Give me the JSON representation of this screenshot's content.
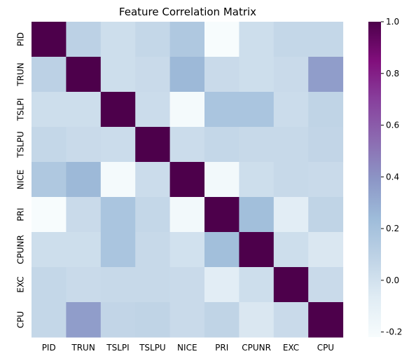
{
  "chart_data": {
    "type": "heatmap",
    "title": "Feature Correlation Matrix",
    "xlabel": "",
    "ylabel": "",
    "labels": [
      "PID",
      "TRUN",
      "TSLPI",
      "TSLPU",
      "NICE",
      "PRI",
      "CPUNR",
      "EXC",
      "CPU"
    ],
    "matrix": [
      [
        1.0,
        0.1,
        0.02,
        0.06,
        0.16,
        -0.22,
        0.02,
        0.06,
        0.06
      ],
      [
        0.1,
        1.0,
        0.02,
        0.04,
        0.25,
        0.04,
        0.02,
        0.04,
        0.36
      ],
      [
        0.02,
        0.02,
        1.0,
        0.03,
        -0.2,
        0.18,
        0.18,
        0.03,
        0.08
      ],
      [
        0.06,
        0.04,
        0.03,
        1.0,
        0.03,
        0.06,
        0.05,
        0.05,
        0.07
      ],
      [
        0.16,
        0.25,
        -0.2,
        0.03,
        1.0,
        -0.19,
        0.02,
        0.05,
        0.04
      ],
      [
        -0.22,
        0.04,
        0.18,
        0.06,
        -0.19,
        1.0,
        0.22,
        -0.08,
        0.08
      ],
      [
        0.02,
        0.02,
        0.18,
        0.05,
        0.0,
        0.22,
        1.0,
        0.02,
        -0.04
      ],
      [
        0.06,
        0.04,
        0.05,
        0.05,
        0.04,
        -0.08,
        0.02,
        1.0,
        0.04
      ],
      [
        0.06,
        0.36,
        0.07,
        0.08,
        0.04,
        0.08,
        -0.04,
        0.04,
        1.0
      ]
    ],
    "colormap": "BuPu",
    "vmin": -0.22,
    "vmax": 1.0,
    "colorbar_ticks": [
      "-0.2",
      "0.0",
      "0.2",
      "0.4",
      "0.6",
      "0.8",
      "1.0"
    ],
    "colorbar_tick_values": [
      -0.2,
      0.0,
      0.2,
      0.4,
      0.6,
      0.8,
      1.0
    ]
  }
}
